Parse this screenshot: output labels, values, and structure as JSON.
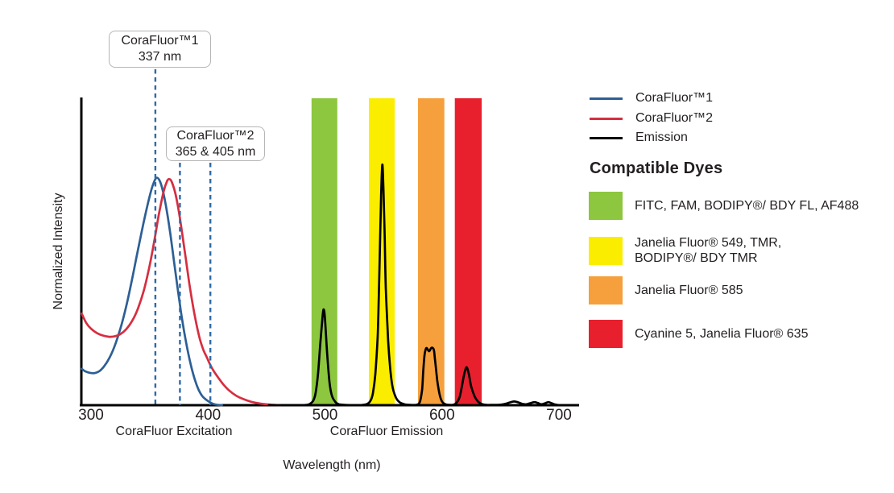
{
  "callouts": [
    {
      "line1": "CoraFluor™1",
      "line2": "337 nm"
    },
    {
      "line1": "CoraFluor™2",
      "line2": "365 & 405 nm"
    }
  ],
  "legend": {
    "items": [
      {
        "label": "CoraFluor™1",
        "color": "#2d5f95"
      },
      {
        "label": "CoraFluor™2",
        "color": "#d62e40"
      },
      {
        "label": "Emission",
        "color": "#000000"
      }
    ]
  },
  "dyes_panel": {
    "heading": "Compatible Dyes",
    "rows": [
      {
        "color": "#8dc63f",
        "lines": [
          "FITC, FAM, BODIPY®/ BDY FL, AF488"
        ]
      },
      {
        "color": "#fbed00",
        "lines": [
          "Janelia Fluor® 549, TMR,",
          "BODIPY®/ BDY TMR"
        ]
      },
      {
        "color": "#f5a03c",
        "lines": [
          "Janelia Fluor® 585"
        ]
      },
      {
        "color": "#e8202e",
        "lines": [
          "Cyanine 5, Janelia Fluor® 635"
        ]
      }
    ]
  },
  "chart_data": {
    "type": "line",
    "title": "",
    "x_axis": {
      "label": "Wavelength (nm)",
      "ticks": [
        300,
        400,
        500,
        600,
        700
      ],
      "range": [
        292,
        717
      ],
      "sublabels": [
        "CoraFluor Excitation",
        "CoraFluor Emission"
      ]
    },
    "y_axis": {
      "label": "Normalized Intensity",
      "range": [
        0,
        1
      ]
    },
    "grid": false,
    "legend_position": "right",
    "marker_color": "#2e6ba6",
    "excitation_marker_lines": [
      {
        "label": "CoraFluor™1 337 nm",
        "value_nm": 337,
        "drawn_at_nm": 355
      },
      {
        "label": "CoraFluor™2 365 nm",
        "value_nm": 365,
        "drawn_at_nm": 376
      },
      {
        "label": "CoraFluor™2 405 nm",
        "value_nm": 405,
        "drawn_at_nm": 402
      }
    ],
    "dye_bands": [
      {
        "name": "FITC, FAM, BODIPY®/ BDY FL, AF488",
        "color": "#8dc63f",
        "nm_start": 488.5,
        "nm_end": 510.5,
        "top_intensity": 0.995
      },
      {
        "name": "Janelia Fluor® 549, TMR, BODIPY®/ BDY TMR",
        "color": "#fbed00",
        "nm_start": 537.5,
        "nm_end": 559.5,
        "top_intensity": 0.995
      },
      {
        "name": "Janelia Fluor® 585",
        "color": "#f5a03c",
        "nm_start": 579.5,
        "nm_end": 602,
        "top_intensity": 0.995
      },
      {
        "name": "Cyanine 5, Janelia Fluor® 635",
        "color": "#e8202e",
        "nm_start": 611,
        "nm_end": 634,
        "top_intensity": 0.995
      }
    ],
    "series": [
      {
        "name": "CoraFluor™1",
        "kind": "excitation",
        "color": "#2d5f95",
        "points": [
          [
            292,
            0.118
          ],
          [
            295,
            0.11
          ],
          [
            299,
            0.105
          ],
          [
            303,
            0.104
          ],
          [
            307,
            0.11
          ],
          [
            311,
            0.125
          ],
          [
            316,
            0.155
          ],
          [
            321,
            0.2
          ],
          [
            326,
            0.26
          ],
          [
            331,
            0.335
          ],
          [
            336,
            0.425
          ],
          [
            341,
            0.52
          ],
          [
            346,
            0.61
          ],
          [
            350,
            0.675
          ],
          [
            353,
            0.715
          ],
          [
            356,
            0.737
          ],
          [
            359,
            0.725
          ],
          [
            362,
            0.685
          ],
          [
            365,
            0.625
          ],
          [
            368,
            0.55
          ],
          [
            371,
            0.465
          ],
          [
            374,
            0.38
          ],
          [
            377,
            0.3
          ],
          [
            380,
            0.23
          ],
          [
            383,
            0.17
          ],
          [
            386,
            0.12
          ],
          [
            389,
            0.08
          ],
          [
            392,
            0.05
          ],
          [
            395,
            0.03
          ],
          [
            398,
            0.019
          ],
          [
            401,
            0.011
          ],
          [
            404,
            0.005
          ],
          [
            408,
            0.001
          ],
          [
            412,
            0
          ]
        ]
      },
      {
        "name": "CoraFluor™2",
        "kind": "excitation",
        "color": "#d62e40",
        "points": [
          [
            292,
            0.297
          ],
          [
            296,
            0.266
          ],
          [
            300,
            0.248
          ],
          [
            305,
            0.234
          ],
          [
            310,
            0.226
          ],
          [
            315,
            0.222
          ],
          [
            320,
            0.223
          ],
          [
            325,
            0.23
          ],
          [
            330,
            0.246
          ],
          [
            335,
            0.272
          ],
          [
            340,
            0.312
          ],
          [
            345,
            0.37
          ],
          [
            350,
            0.45
          ],
          [
            354,
            0.53
          ],
          [
            358,
            0.618
          ],
          [
            362,
            0.692
          ],
          [
            365,
            0.726
          ],
          [
            367,
            0.733
          ],
          [
            369,
            0.724
          ],
          [
            372,
            0.688
          ],
          [
            375,
            0.63
          ],
          [
            378,
            0.555
          ],
          [
            381,
            0.475
          ],
          [
            384,
            0.395
          ],
          [
            387,
            0.325
          ],
          [
            390,
            0.265
          ],
          [
            393,
            0.215
          ],
          [
            396,
            0.18
          ],
          [
            399,
            0.155
          ],
          [
            402,
            0.13
          ],
          [
            405,
            0.11
          ],
          [
            409,
            0.088
          ],
          [
            413,
            0.068
          ],
          [
            418,
            0.048
          ],
          [
            424,
            0.031
          ],
          [
            430,
            0.02
          ],
          [
            437,
            0.011
          ],
          [
            445,
            0.005
          ],
          [
            453,
            0.002
          ],
          [
            462,
            0
          ]
        ]
      },
      {
        "name": "Emission",
        "kind": "emission",
        "color": "#000000",
        "points": [
          [
            452,
            0
          ],
          [
            466,
            0
          ],
          [
            478,
            0
          ],
          [
            484,
            0.001
          ],
          [
            487,
            0.004
          ],
          [
            490,
            0.015
          ],
          [
            492,
            0.04
          ],
          [
            494,
            0.1
          ],
          [
            496,
            0.2
          ],
          [
            498,
            0.29
          ],
          [
            499,
            0.31
          ],
          [
            500,
            0.28
          ],
          [
            502,
            0.16
          ],
          [
            504,
            0.07
          ],
          [
            506,
            0.03
          ],
          [
            509,
            0.01
          ],
          [
            512,
            0.003
          ],
          [
            517,
            0.001
          ],
          [
            524,
            0
          ],
          [
            530,
            0
          ],
          [
            536,
            0.004
          ],
          [
            539,
            0.015
          ],
          [
            541,
            0.04
          ],
          [
            543,
            0.1
          ],
          [
            545,
            0.22
          ],
          [
            546,
            0.35
          ],
          [
            547,
            0.52
          ],
          [
            548,
            0.68
          ],
          [
            549,
            0.78
          ],
          [
            550,
            0.7
          ],
          [
            551,
            0.55
          ],
          [
            552,
            0.38
          ],
          [
            554,
            0.21
          ],
          [
            556,
            0.11
          ],
          [
            558,
            0.055
          ],
          [
            561,
            0.022
          ],
          [
            564,
            0.009
          ],
          [
            568,
            0.003
          ],
          [
            573,
            0.001
          ],
          [
            578,
            0.001
          ],
          [
            581,
            0.01
          ],
          [
            583,
            0.05
          ],
          [
            584,
            0.11
          ],
          [
            585,
            0.16
          ],
          [
            586,
            0.18
          ],
          [
            587,
            0.185
          ],
          [
            589,
            0.175
          ],
          [
            591,
            0.186
          ],
          [
            593,
            0.18
          ],
          [
            594,
            0.15
          ],
          [
            596,
            0.08
          ],
          [
            598,
            0.035
          ],
          [
            600,
            0.012
          ],
          [
            603,
            0.003
          ],
          [
            607,
            0.001
          ],
          [
            609,
            0.001
          ],
          [
            612,
            0.006
          ],
          [
            615,
            0.025
          ],
          [
            617,
            0.06
          ],
          [
            619,
            0.1
          ],
          [
            621,
            0.123
          ],
          [
            623,
            0.1
          ],
          [
            625,
            0.06
          ],
          [
            628,
            0.028
          ],
          [
            631,
            0.011
          ],
          [
            634,
            0.004
          ],
          [
            638,
            0.001
          ],
          [
            643,
            0.001
          ],
          [
            647,
            0.001
          ],
          [
            651,
            0.002
          ],
          [
            655,
            0.005
          ],
          [
            658,
            0.009
          ],
          [
            662,
            0.012
          ],
          [
            666,
            0.008
          ],
          [
            669,
            0.004
          ],
          [
            672,
            0.003
          ],
          [
            675,
            0.006
          ],
          [
            679,
            0.01
          ],
          [
            682,
            0.007
          ],
          [
            685,
            0.003
          ],
          [
            688,
            0.006
          ],
          [
            691,
            0.01
          ],
          [
            694,
            0.006
          ],
          [
            697,
            0.002
          ],
          [
            701,
            0
          ],
          [
            705,
            0
          ]
        ]
      }
    ]
  }
}
